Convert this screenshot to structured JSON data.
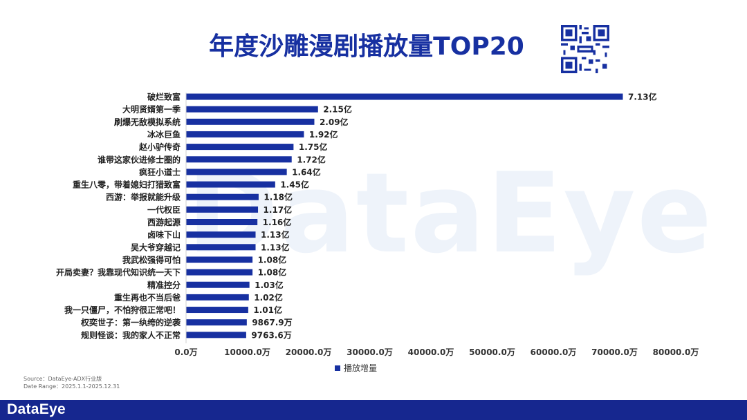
{
  "title": "年度沙雕漫剧播放量TOP20",
  "watermark": "DataEye",
  "source": {
    "line1": "Source：DataEye-ADX行业版",
    "line2": "Date Range：2025.1.1-2025.12.31"
  },
  "footer": {
    "logo": "DataEye"
  },
  "qr_icon": "qr-code-icon",
  "colors": {
    "bar": "#1730a1",
    "title": "#1730a1",
    "footer": "#16278f"
  },
  "chart_data": {
    "type": "bar",
    "orientation": "horizontal",
    "title": "年度沙雕漫剧播放量TOP20",
    "categories": [
      "破烂致富",
      "大明贤婿第一季",
      "刷爆无敌模拟系统",
      "冰冰巨鱼",
      "赵小驴传奇",
      "谁带这家伙进修士圈的",
      "疯狂小道士",
      "重生八零，带着媳妇打猎致富",
      "西游：举报就能升级",
      "一代权臣",
      "西游起源",
      "卤味下山",
      "吴大爷穿越记",
      "我武松强得可怕",
      "开局卖妻？我靠现代知识统一天下",
      "精准控分",
      "重生再也不当后爸",
      "我一只僵尸，不怕狩很正常吧！",
      "权奕世子：第一纨绔的逆袭",
      "规则怪谈：我的家人不正常"
    ],
    "series": [
      {
        "name": "播放增量",
        "values": [
          71300,
          21500,
          20900,
          19200,
          17500,
          17200,
          16400,
          14500,
          11800,
          11700,
          11600,
          11300,
          11300,
          10800,
          10800,
          10300,
          10200,
          10100,
          9867.9,
          9763.6
        ],
        "labels": [
          "7.13亿",
          "2.15亿",
          "2.09亿",
          "1.92亿",
          "1.75亿",
          "1.72亿",
          "1.64亿",
          "1.45亿",
          "1.18亿",
          "1.17亿",
          "1.16亿",
          "1.13亿",
          "1.13亿",
          "1.08亿",
          "1.08亿",
          "1.03亿",
          "1.02亿",
          "1.01亿",
          "9867.9万",
          "9763.6万"
        ]
      }
    ],
    "xlim": [
      0,
      80000
    ],
    "xticks": [
      0,
      10000,
      20000,
      30000,
      40000,
      50000,
      60000,
      70000,
      80000
    ],
    "xtick_labels": [
      "0.0万",
      "10000.0万",
      "20000.0万",
      "30000.0万",
      "40000.0万",
      "50000.0万",
      "60000.0万",
      "70000.0万",
      "80000.0万"
    ],
    "grid": false,
    "legend": "bottom-center"
  }
}
